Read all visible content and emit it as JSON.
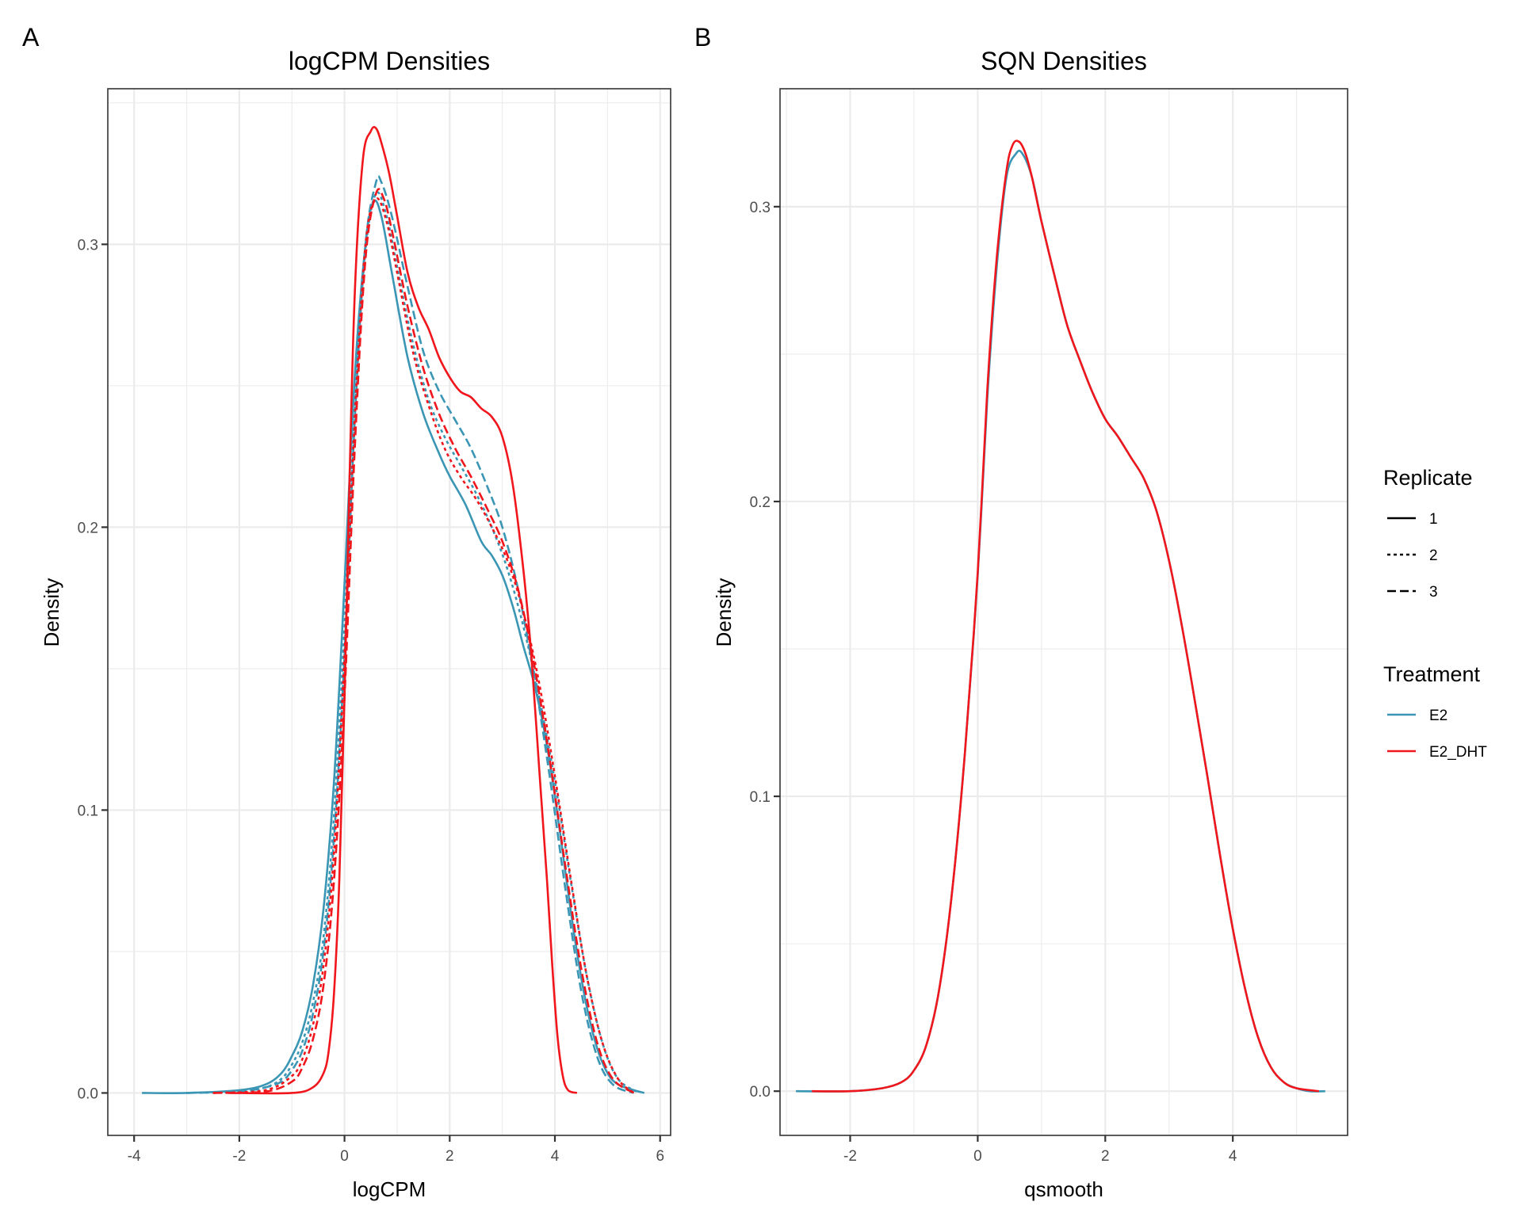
{
  "figure": {
    "panels": [
      "A",
      "B"
    ]
  },
  "legend": {
    "replicate": {
      "title": "Replicate",
      "items": [
        {
          "label": "1",
          "linetype": "solid"
        },
        {
          "label": "2",
          "linetype": "dotted"
        },
        {
          "label": "3",
          "linetype": "dashed"
        }
      ]
    },
    "treatment": {
      "title": "Treatment",
      "items": [
        {
          "label": "E2",
          "color": "#3a96b4"
        },
        {
          "label": "E2_DHT",
          "color": "#f0161c"
        }
      ]
    }
  },
  "chart_data": [
    {
      "type": "line",
      "panel": "A",
      "title": "logCPM Densities",
      "xlabel": "logCPM",
      "ylabel": "Density",
      "xlim": [
        -4.5,
        6.2
      ],
      "ylim": [
        -0.015,
        0.355
      ],
      "xticks": [
        -4,
        -2,
        0,
        2,
        4,
        6
      ],
      "xtick_labels": [
        "-4",
        "-2",
        "0",
        "2",
        "4",
        "6"
      ],
      "yticks": [
        0.0,
        0.1,
        0.2,
        0.3
      ],
      "ytick_labels": [
        "0.0",
        "0.1",
        "0.2",
        "0.3"
      ],
      "grid": true,
      "legend_position": "right",
      "series": [
        {
          "name": "E2 rep1",
          "treatment": "E2",
          "replicate": "1",
          "x": [
            -3.85,
            -3.0,
            -2.0,
            -1.5,
            -1.2,
            -1.0,
            -0.8,
            -0.6,
            -0.4,
            -0.2,
            0.0,
            0.2,
            0.4,
            0.55,
            0.7,
            0.9,
            1.2,
            1.5,
            1.8,
            2.0,
            2.3,
            2.6,
            2.8,
            3.0,
            3.2,
            3.4,
            3.6,
            3.8,
            4.0,
            4.2,
            4.4,
            4.6,
            4.8,
            5.0,
            5.2,
            5.5,
            5.7
          ],
          "y": [
            0.0,
            0.0,
            0.001,
            0.003,
            0.007,
            0.013,
            0.022,
            0.038,
            0.065,
            0.11,
            0.18,
            0.255,
            0.3,
            0.315,
            0.31,
            0.29,
            0.26,
            0.24,
            0.226,
            0.218,
            0.208,
            0.195,
            0.19,
            0.183,
            0.172,
            0.158,
            0.145,
            0.128,
            0.105,
            0.078,
            0.052,
            0.031,
            0.016,
            0.007,
            0.003,
            0.001,
            0.0
          ]
        },
        {
          "name": "E2 rep2",
          "treatment": "E2",
          "replicate": "2",
          "x": [
            -3.0,
            -2.0,
            -1.5,
            -1.2,
            -1.0,
            -0.8,
            -0.6,
            -0.4,
            -0.2,
            0.0,
            0.2,
            0.4,
            0.6,
            0.8,
            1.0,
            1.3,
            1.6,
            1.9,
            2.2,
            2.5,
            2.8,
            3.1,
            3.4,
            3.7,
            4.0,
            4.3,
            4.6,
            4.9,
            5.2,
            5.6
          ],
          "y": [
            0.0,
            0.0005,
            0.002,
            0.005,
            0.01,
            0.018,
            0.032,
            0.055,
            0.098,
            0.165,
            0.245,
            0.298,
            0.318,
            0.31,
            0.292,
            0.265,
            0.245,
            0.232,
            0.222,
            0.212,
            0.2,
            0.185,
            0.165,
            0.14,
            0.11,
            0.075,
            0.042,
            0.018,
            0.005,
            0.0
          ]
        },
        {
          "name": "E2 rep3",
          "treatment": "E2",
          "replicate": "3",
          "x": [
            -3.0,
            -2.0,
            -1.5,
            -1.2,
            -1.0,
            -0.8,
            -0.6,
            -0.4,
            -0.2,
            0.0,
            0.2,
            0.4,
            0.6,
            0.7,
            0.9,
            1.2,
            1.5,
            1.8,
            2.1,
            2.4,
            2.7,
            3.0,
            3.3,
            3.6,
            3.9,
            4.2,
            4.5,
            4.8,
            5.1,
            5.5
          ],
          "y": [
            0.0,
            0.0005,
            0.002,
            0.004,
            0.008,
            0.015,
            0.028,
            0.05,
            0.09,
            0.155,
            0.24,
            0.3,
            0.322,
            0.322,
            0.31,
            0.285,
            0.262,
            0.248,
            0.238,
            0.228,
            0.215,
            0.2,
            0.178,
            0.148,
            0.112,
            0.072,
            0.036,
            0.013,
            0.003,
            0.0
          ]
        },
        {
          "name": "E2_DHT rep1",
          "treatment": "E2_DHT",
          "replicate": "1",
          "x": [
            -2.2,
            -1.0,
            -0.6,
            -0.4,
            -0.3,
            -0.2,
            -0.1,
            0.0,
            0.1,
            0.2,
            0.35,
            0.5,
            0.6,
            0.7,
            0.85,
            1.0,
            1.2,
            1.4,
            1.6,
            1.8,
            2.0,
            2.2,
            2.4,
            2.6,
            2.8,
            3.0,
            3.2,
            3.4,
            3.55,
            3.7,
            3.85,
            3.95,
            4.05,
            4.15,
            4.25,
            4.42
          ],
          "y": [
            0.0,
            0.0,
            0.002,
            0.007,
            0.015,
            0.035,
            0.075,
            0.14,
            0.22,
            0.285,
            0.33,
            0.34,
            0.341,
            0.336,
            0.325,
            0.31,
            0.29,
            0.278,
            0.27,
            0.26,
            0.253,
            0.248,
            0.246,
            0.242,
            0.239,
            0.232,
            0.215,
            0.185,
            0.155,
            0.115,
            0.075,
            0.045,
            0.02,
            0.006,
            0.001,
            0.0
          ]
        },
        {
          "name": "E2_DHT rep2",
          "treatment": "E2_DHT",
          "replicate": "2",
          "x": [
            -2.5,
            -1.5,
            -1.0,
            -0.8,
            -0.6,
            -0.4,
            -0.2,
            0.0,
            0.2,
            0.4,
            0.6,
            0.8,
            1.0,
            1.3,
            1.6,
            1.9,
            2.2,
            2.5,
            2.8,
            3.1,
            3.4,
            3.7,
            4.0,
            4.3,
            4.6,
            4.9,
            5.2,
            5.5
          ],
          "y": [
            0.0,
            0.001,
            0.006,
            0.012,
            0.024,
            0.045,
            0.085,
            0.155,
            0.24,
            0.3,
            0.316,
            0.308,
            0.29,
            0.262,
            0.243,
            0.228,
            0.218,
            0.21,
            0.2,
            0.188,
            0.17,
            0.145,
            0.112,
            0.076,
            0.042,
            0.018,
            0.005,
            0.0
          ]
        },
        {
          "name": "E2_DHT rep3",
          "treatment": "E2_DHT",
          "replicate": "3",
          "x": [
            -2.5,
            -1.5,
            -1.0,
            -0.8,
            -0.6,
            -0.4,
            -0.2,
            0.0,
            0.2,
            0.4,
            0.6,
            0.75,
            0.9,
            1.2,
            1.5,
            1.8,
            2.1,
            2.4,
            2.7,
            3.0,
            3.3,
            3.6,
            3.9,
            4.2,
            4.5,
            4.8,
            5.1,
            5.5
          ],
          "y": [
            0.0,
            0.0005,
            0.004,
            0.009,
            0.019,
            0.038,
            0.075,
            0.14,
            0.23,
            0.295,
            0.318,
            0.316,
            0.305,
            0.278,
            0.256,
            0.24,
            0.228,
            0.218,
            0.207,
            0.195,
            0.178,
            0.152,
            0.118,
            0.08,
            0.044,
            0.018,
            0.005,
            0.0
          ]
        }
      ]
    },
    {
      "type": "line",
      "panel": "B",
      "title": "SQN Densities",
      "xlabel": "qsmooth",
      "ylabel": "Density",
      "xlim": [
        -3.1,
        5.8
      ],
      "ylim": [
        -0.015,
        0.34
      ],
      "xticks": [
        -2,
        0,
        2,
        4
      ],
      "xtick_labels": [
        "-2",
        "0",
        "2",
        "4"
      ],
      "yticks": [
        0.0,
        0.1,
        0.2,
        0.3
      ],
      "ytick_labels": [
        "0.0",
        "0.1",
        "0.2",
        "0.3"
      ],
      "grid": true,
      "legend_position": "right",
      "series": [
        {
          "name": "E2 (all replicates)",
          "treatment": "E2",
          "replicate": "1",
          "x": [
            -2.85,
            -2.0,
            -1.5,
            -1.2,
            -1.0,
            -0.8,
            -0.6,
            -0.4,
            -0.2,
            0.0,
            0.15,
            0.3,
            0.45,
            0.6,
            0.7,
            0.85,
            1.0,
            1.2,
            1.4,
            1.6,
            1.8,
            2.0,
            2.2,
            2.4,
            2.6,
            2.8,
            3.0,
            3.2,
            3.4,
            3.6,
            3.8,
            4.0,
            4.2,
            4.4,
            4.6,
            4.8,
            5.0,
            5.2,
            5.45
          ],
          "y": [
            0.0,
            0.0,
            0.001,
            0.003,
            0.007,
            0.016,
            0.035,
            0.068,
            0.115,
            0.175,
            0.235,
            0.28,
            0.31,
            0.318,
            0.318,
            0.31,
            0.295,
            0.277,
            0.26,
            0.248,
            0.237,
            0.228,
            0.222,
            0.215,
            0.208,
            0.197,
            0.18,
            0.158,
            0.133,
            0.107,
            0.08,
            0.055,
            0.034,
            0.018,
            0.008,
            0.003,
            0.001,
            0.0,
            0.0
          ]
        },
        {
          "name": "E2_DHT (all replicates)",
          "treatment": "E2_DHT",
          "replicate": "1",
          "x": [
            -2.6,
            -2.0,
            -1.5,
            -1.2,
            -1.0,
            -0.8,
            -0.6,
            -0.4,
            -0.2,
            0.0,
            0.15,
            0.3,
            0.45,
            0.55,
            0.65,
            0.75,
            0.85,
            1.0,
            1.2,
            1.4,
            1.6,
            1.8,
            2.0,
            2.2,
            2.4,
            2.6,
            2.8,
            3.0,
            3.2,
            3.4,
            3.6,
            3.8,
            4.0,
            4.2,
            4.4,
            4.6,
            4.8,
            5.0,
            5.35
          ],
          "y": [
            0.0,
            0.0,
            0.001,
            0.003,
            0.007,
            0.016,
            0.035,
            0.068,
            0.115,
            0.176,
            0.238,
            0.283,
            0.312,
            0.321,
            0.322,
            0.318,
            0.31,
            0.295,
            0.277,
            0.26,
            0.248,
            0.237,
            0.228,
            0.222,
            0.215,
            0.208,
            0.197,
            0.18,
            0.158,
            0.133,
            0.107,
            0.08,
            0.055,
            0.034,
            0.018,
            0.008,
            0.003,
            0.001,
            0.0
          ]
        }
      ]
    }
  ]
}
